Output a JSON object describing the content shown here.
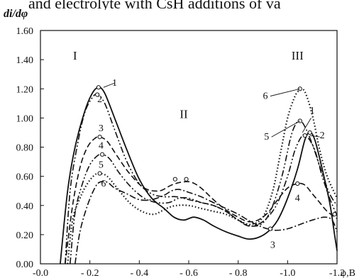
{
  "caption": "and electrolyte with CsH additions of va",
  "chart_data": {
    "type": "line",
    "ylabel": "di/dφ",
    "xlabel": "φ,B",
    "xlim": [
      0.0,
      -1.2
    ],
    "ylim": [
      0.0,
      1.6
    ],
    "x_ticks": [
      "-0.0",
      "- 0.2",
      "- 0.4",
      "- 0.6",
      "- 0.8",
      "-1.0",
      "-1.2"
    ],
    "x_tick_values": [
      0.0,
      -0.2,
      -0.4,
      -0.6,
      -0.8,
      -1.0,
      -1.2
    ],
    "y_ticks": [
      "0.00",
      "0.20",
      "0.40",
      "0.60",
      "0.80",
      "1.00",
      "1.20",
      "1.40",
      "1.60"
    ],
    "y_tick_values": [
      0.0,
      0.2,
      0.4,
      0.6,
      0.8,
      1.0,
      1.2,
      1.4,
      1.6
    ],
    "region_labels": [
      {
        "text": "I",
        "x": -0.14,
        "y": 1.4
      },
      {
        "text": "II",
        "x": -0.58,
        "y": 1.0
      },
      {
        "text": "III",
        "x": -1.04,
        "y": 1.4
      }
    ],
    "series": [
      {
        "name": "1",
        "style": "solid",
        "points": [
          [
            -0.08,
            0.0
          ],
          [
            -0.11,
            0.5
          ],
          [
            -0.14,
            0.8
          ],
          [
            -0.18,
            1.05
          ],
          [
            -0.21,
            1.17
          ],
          [
            -0.235,
            1.21
          ],
          [
            -0.26,
            1.17
          ],
          [
            -0.3,
            1.0
          ],
          [
            -0.35,
            0.78
          ],
          [
            -0.4,
            0.58
          ],
          [
            -0.45,
            0.45
          ],
          [
            -0.5,
            0.38
          ],
          [
            -0.54,
            0.32
          ],
          [
            -0.58,
            0.3
          ],
          [
            -0.62,
            0.32
          ],
          [
            -0.66,
            0.3
          ],
          [
            -0.7,
            0.26
          ],
          [
            -0.75,
            0.22
          ],
          [
            -0.8,
            0.19
          ],
          [
            -0.84,
            0.17
          ],
          [
            -0.88,
            0.18
          ],
          [
            -0.92,
            0.22
          ],
          [
            -0.96,
            0.3
          ],
          [
            -1.0,
            0.45
          ],
          [
            -1.04,
            0.65
          ],
          [
            -1.07,
            0.85
          ],
          [
            -1.09,
            0.9
          ],
          [
            -1.11,
            0.85
          ],
          [
            -1.14,
            0.65
          ],
          [
            -1.17,
            0.42
          ],
          [
            -1.19,
            0.2
          ],
          [
            -1.2,
            0.09
          ]
        ]
      },
      {
        "name": "2",
        "style": "dash-dot-dot",
        "points": [
          [
            -0.1,
            0.0
          ],
          [
            -0.12,
            0.5
          ],
          [
            -0.15,
            0.82
          ],
          [
            -0.18,
            1.04
          ],
          [
            -0.21,
            1.14
          ],
          [
            -0.23,
            1.16
          ],
          [
            -0.26,
            1.1
          ],
          [
            -0.3,
            0.92
          ],
          [
            -0.35,
            0.7
          ],
          [
            -0.4,
            0.55
          ],
          [
            -0.45,
            0.48
          ],
          [
            -0.5,
            0.46
          ],
          [
            -0.55,
            0.46
          ],
          [
            -0.6,
            0.44
          ],
          [
            -0.65,
            0.42
          ],
          [
            -0.7,
            0.4
          ],
          [
            -0.75,
            0.36
          ],
          [
            -0.8,
            0.3
          ],
          [
            -0.84,
            0.26
          ],
          [
            -0.88,
            0.27
          ],
          [
            -0.92,
            0.32
          ],
          [
            -0.96,
            0.42
          ],
          [
            -1.0,
            0.6
          ],
          [
            -1.03,
            0.78
          ],
          [
            -1.06,
            0.88
          ],
          [
            -1.08,
            0.87
          ],
          [
            -1.11,
            0.78
          ],
          [
            -1.14,
            0.6
          ],
          [
            -1.17,
            0.45
          ],
          [
            -1.2,
            0.33
          ]
        ]
      },
      {
        "name": "3",
        "style": "dash-dot",
        "points": [
          [
            -0.14,
            0.0
          ],
          [
            -0.16,
            0.22
          ],
          [
            -0.19,
            0.4
          ],
          [
            -0.22,
            0.52
          ],
          [
            -0.24,
            0.56
          ],
          [
            -0.27,
            0.56
          ],
          [
            -0.3,
            0.52
          ],
          [
            -0.35,
            0.48
          ],
          [
            -0.4,
            0.44
          ],
          [
            -0.45,
            0.44
          ],
          [
            -0.5,
            0.47
          ],
          [
            -0.53,
            0.5
          ],
          [
            -0.56,
            0.51
          ],
          [
            -0.6,
            0.49
          ],
          [
            -0.65,
            0.46
          ],
          [
            -0.7,
            0.42
          ],
          [
            -0.75,
            0.38
          ],
          [
            -0.8,
            0.34
          ],
          [
            -0.85,
            0.29
          ],
          [
            -0.9,
            0.25
          ],
          [
            -0.95,
            0.23
          ],
          [
            -1.0,
            0.24
          ],
          [
            -1.05,
            0.27
          ],
          [
            -1.1,
            0.3
          ],
          [
            -1.15,
            0.32
          ],
          [
            -1.18,
            0.3
          ],
          [
            -1.2,
            0.22
          ]
        ]
      },
      {
        "name": "4",
        "style": "dashed",
        "points": [
          [
            -0.1,
            0.0
          ],
          [
            -0.13,
            0.4
          ],
          [
            -0.16,
            0.66
          ],
          [
            -0.19,
            0.8
          ],
          [
            -0.22,
            0.86
          ],
          [
            -0.24,
            0.87
          ],
          [
            -0.27,
            0.84
          ],
          [
            -0.31,
            0.74
          ],
          [
            -0.36,
            0.62
          ],
          [
            -0.42,
            0.52
          ],
          [
            -0.48,
            0.5
          ],
          [
            -0.53,
            0.54
          ],
          [
            -0.57,
            0.56
          ],
          [
            -0.61,
            0.56
          ],
          [
            -0.65,
            0.52
          ],
          [
            -0.7,
            0.44
          ],
          [
            -0.75,
            0.37
          ],
          [
            -0.8,
            0.32
          ],
          [
            -0.84,
            0.29
          ],
          [
            -0.88,
            0.3
          ],
          [
            -0.92,
            0.35
          ],
          [
            -0.96,
            0.44
          ],
          [
            -1.0,
            0.52
          ],
          [
            -1.04,
            0.55
          ],
          [
            -1.07,
            0.54
          ],
          [
            -1.1,
            0.48
          ],
          [
            -1.13,
            0.42
          ],
          [
            -1.16,
            0.36
          ],
          [
            -1.2,
            0.31
          ]
        ]
      },
      {
        "name": "5",
        "style": "dash-dot-dot",
        "points": [
          [
            -0.12,
            0.0
          ],
          [
            -0.14,
            0.35
          ],
          [
            -0.17,
            0.55
          ],
          [
            -0.2,
            0.68
          ],
          [
            -0.23,
            0.74
          ],
          [
            -0.25,
            0.75
          ],
          [
            -0.28,
            0.72
          ],
          [
            -0.32,
            0.62
          ],
          [
            -0.37,
            0.52
          ],
          [
            -0.42,
            0.45
          ],
          [
            -0.47,
            0.42
          ],
          [
            -0.52,
            0.42
          ],
          [
            -0.56,
            0.45
          ],
          [
            -0.6,
            0.45
          ],
          [
            -0.65,
            0.42
          ],
          [
            -0.7,
            0.4
          ],
          [
            -0.75,
            0.36
          ],
          [
            -0.8,
            0.3
          ],
          [
            -0.85,
            0.26
          ],
          [
            -0.9,
            0.28
          ],
          [
            -0.94,
            0.4
          ],
          [
            -0.98,
            0.62
          ],
          [
            -1.01,
            0.85
          ],
          [
            -1.03,
            0.95
          ],
          [
            -1.05,
            0.98
          ],
          [
            -1.07,
            0.94
          ],
          [
            -1.1,
            0.82
          ],
          [
            -1.14,
            0.62
          ],
          [
            -1.17,
            0.48
          ],
          [
            -1.2,
            0.4
          ]
        ]
      },
      {
        "name": "6",
        "style": "dotted",
        "points": [
          [
            -0.11,
            0.0
          ],
          [
            -0.13,
            0.3
          ],
          [
            -0.16,
            0.45
          ],
          [
            -0.19,
            0.55
          ],
          [
            -0.22,
            0.61
          ],
          [
            -0.24,
            0.62
          ],
          [
            -0.27,
            0.6
          ],
          [
            -0.31,
            0.52
          ],
          [
            -0.36,
            0.42
          ],
          [
            -0.41,
            0.36
          ],
          [
            -0.46,
            0.34
          ],
          [
            -0.51,
            0.38
          ],
          [
            -0.55,
            0.4
          ],
          [
            -0.6,
            0.4
          ],
          [
            -0.65,
            0.38
          ],
          [
            -0.7,
            0.36
          ],
          [
            -0.75,
            0.34
          ],
          [
            -0.8,
            0.3
          ],
          [
            -0.85,
            0.27
          ],
          [
            -0.9,
            0.32
          ],
          [
            -0.94,
            0.5
          ],
          [
            -0.97,
            0.75
          ],
          [
            -1.0,
            1.0
          ],
          [
            -1.03,
            1.15
          ],
          [
            -1.05,
            1.19
          ],
          [
            -1.07,
            1.18
          ],
          [
            -1.1,
            1.02
          ],
          [
            -1.13,
            0.78
          ],
          [
            -1.16,
            0.6
          ],
          [
            -1.2,
            0.45
          ]
        ]
      }
    ],
    "markers": [
      {
        "series": "1",
        "x": -0.235,
        "y": 1.21
      },
      {
        "series": "2",
        "x": -0.23,
        "y": 1.16
      },
      {
        "series": "3",
        "x": -0.24,
        "y": 0.87
      },
      {
        "series": "4",
        "x": -0.25,
        "y": 0.75
      },
      {
        "series": "5",
        "x": -0.24,
        "y": 0.62
      },
      {
        "series": "II",
        "x": -0.545,
        "y": 0.58
      },
      {
        "series": "II",
        "x": -0.59,
        "y": 0.58
      },
      {
        "series": "3",
        "x": -0.93,
        "y": 0.24
      },
      {
        "series": "4",
        "x": -1.04,
        "y": 0.55
      },
      {
        "series": "5",
        "x": -1.05,
        "y": 0.98
      },
      {
        "series": "6",
        "x": -1.05,
        "y": 1.2
      },
      {
        "series": "2",
        "x": -1.09,
        "y": 0.9
      },
      {
        "series": "1",
        "x": -1.07,
        "y": 0.88
      },
      {
        "series": "3",
        "x": -1.19,
        "y": 0.34
      }
    ],
    "curve_labels": [
      {
        "text": "1",
        "x": -0.3,
        "y": 1.22,
        "lx": -0.255,
        "ly": 1.21
      },
      {
        "text": "2",
        "x": -0.24,
        "y": 1.11
      },
      {
        "text": "3",
        "x": -0.245,
        "y": 0.91
      },
      {
        "text": "4",
        "x": -0.245,
        "y": 0.79
      },
      {
        "text": "5",
        "x": -0.245,
        "y": 0.66
      },
      {
        "text": "6",
        "x": -0.255,
        "y": 0.53
      },
      {
        "text": "6",
        "x": -0.91,
        "y": 1.13,
        "lx": -1.05,
        "ly": 1.2,
        "ax": -0.93,
        "ay": 1.15
      },
      {
        "text": "5",
        "x": -0.915,
        "y": 0.85,
        "lx": -1.05,
        "ly": 0.98,
        "ax": -0.935,
        "ay": 0.87
      },
      {
        "text": "1",
        "x": -1.1,
        "y": 1.03,
        "lx": -1.06,
        "ly": 0.9,
        "ax": -1.095,
        "ay": 1.0
      },
      {
        "text": "2",
        "x": -1.14,
        "y": 0.86,
        "lx": -1.09,
        "ly": 0.88,
        "ax": -1.13,
        "ay": 0.87
      },
      {
        "text": "4",
        "x": -1.04,
        "y": 0.43
      },
      {
        "text": "3",
        "x": -0.94,
        "y": 0.11
      }
    ],
    "grid": false,
    "legend": "none"
  }
}
